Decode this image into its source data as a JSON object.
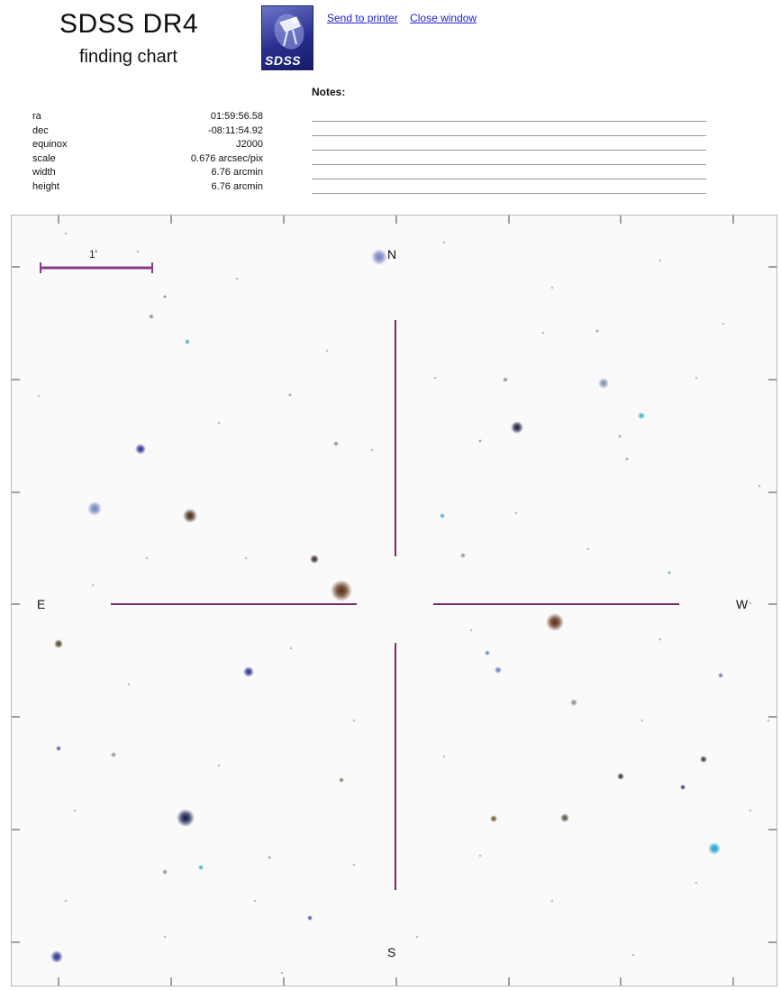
{
  "header": {
    "title": "SDSS DR4",
    "subtitle": "finding chart",
    "logo_text": "SDSS",
    "logo_icon": "sdss-telescope-logo-icon"
  },
  "links": {
    "print": "Send to printer",
    "close": "Close window"
  },
  "notes": {
    "label": "Notes:"
  },
  "params": [
    {
      "key": "ra",
      "value": "01:59:56.58"
    },
    {
      "key": "dec",
      "value": "-08:11:54.92"
    },
    {
      "key": "equinox",
      "value": "J2000"
    },
    {
      "key": "scale",
      "value": "0.676 arcsec/pix"
    },
    {
      "key": "width",
      "value": "6.76 arcmin"
    },
    {
      "key": "height",
      "value": "6.76 arcmin"
    }
  ],
  "chart": {
    "scale_bar_label": "1'",
    "directions": {
      "north": "N",
      "south": "S",
      "east": "E",
      "west": "W"
    },
    "colors": {
      "crosshair": "#7a2a6a",
      "scalebar": "#8a3a8a",
      "tick": "#444444"
    }
  }
}
